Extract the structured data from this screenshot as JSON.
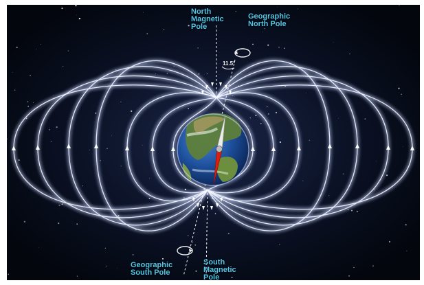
{
  "labels": {
    "north_magnetic_pole": [
      "North",
      "Magnetic",
      "Pole"
    ],
    "geographic_north_pole": [
      "Geographic",
      "North Pole"
    ],
    "geographic_south_pole": [
      "Geographic",
      "South Pole"
    ],
    "south_magnetic_pole": [
      "South",
      "Magnetic",
      "Pole"
    ],
    "tilt_angle": "11.5°"
  },
  "colors": {
    "background": "#060a14",
    "field_lines": "#c9d6ff",
    "label_text": "#53c6e6",
    "needle_north": "#e8e8e8",
    "needle_south": "#d81f10",
    "ocean": "#1d4f9c"
  },
  "icons": {
    "earth": "earth-globe-icon",
    "compass": "compass-needle-icon",
    "rotation": "rotation-arrow-icon"
  }
}
